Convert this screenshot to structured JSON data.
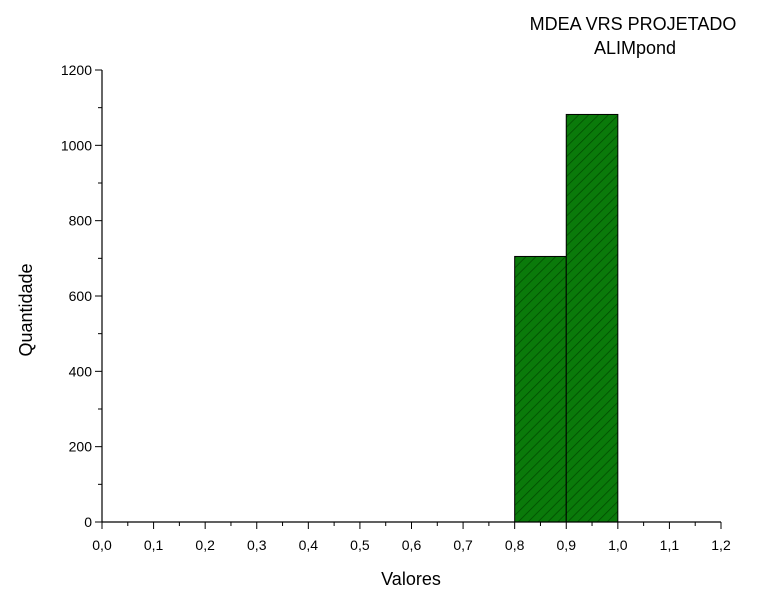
{
  "chart_data": {
    "type": "bar",
    "title": "MDEA VRS PROJETADO",
    "subtitle": "ALIMpond",
    "xlabel": "Valores",
    "ylabel": "Quantidade",
    "xlim": [
      0.0,
      1.2
    ],
    "ylim": [
      0,
      1200
    ],
    "x_ticks": [
      "0,0",
      "0,1",
      "0,2",
      "0,3",
      "0,4",
      "0,5",
      "0,6",
      "0,7",
      "0,8",
      "0,9",
      "1,0",
      "1,1",
      "1,2"
    ],
    "y_ticks": [
      "0",
      "200",
      "400",
      "600",
      "800",
      "1000",
      "1200"
    ],
    "bins": [
      {
        "start": 0.8,
        "end": 0.9,
        "value": 705
      },
      {
        "start": 0.9,
        "end": 1.0,
        "value": 1082
      }
    ],
    "grid": false,
    "legend": "none",
    "bar_color": "#0a7a0a",
    "hatch_color": "#004d00"
  }
}
